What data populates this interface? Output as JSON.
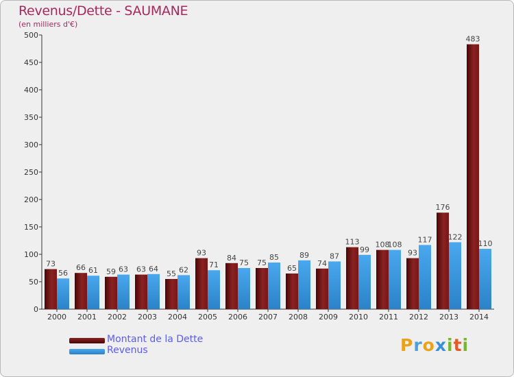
{
  "title": "Revenus/Dette - SAUMANE",
  "subtitle": "(en milliers d'€)",
  "colors": {
    "dette": "#6b0f0f",
    "revenus": "#3d9be0",
    "title": "#a6285d",
    "legend_text": "#5a5aff"
  },
  "legend": [
    {
      "label": "Montant de la Dette",
      "color": "#6b0f0f"
    },
    {
      "label": "Revenus",
      "color": "#3d9be0"
    }
  ],
  "logo": {
    "letters": [
      "P",
      "r",
      "o",
      "x",
      "i",
      "t",
      "i"
    ],
    "colors": [
      "#e8a21c",
      "#4fa0d9",
      "#e8a21c",
      "#3a8fd6",
      "#79b531",
      "#e25a2a",
      "#79b531"
    ]
  },
  "chart_data": {
    "type": "bar",
    "categories": [
      "2000",
      "2001",
      "2002",
      "2003",
      "2004",
      "2005",
      "2006",
      "2007",
      "2008",
      "2009",
      "2010",
      "2011",
      "2012",
      "2013",
      "2014"
    ],
    "series": [
      {
        "name": "Montant de la Dette",
        "values": [
          73,
          66,
          59,
          63,
          55,
          93,
          84,
          75,
          65,
          74,
          113,
          108,
          93,
          176,
          483
        ]
      },
      {
        "name": "Revenus",
        "values": [
          56,
          61,
          63,
          64,
          62,
          71,
          75,
          85,
          89,
          87,
          99,
          108,
          117,
          122,
          110
        ]
      }
    ],
    "ylim": [
      0,
      500
    ],
    "yticks": [
      0,
      50,
      100,
      150,
      200,
      250,
      300,
      350,
      400,
      450,
      500
    ],
    "grid": false,
    "legend_position": "bottom-left"
  }
}
